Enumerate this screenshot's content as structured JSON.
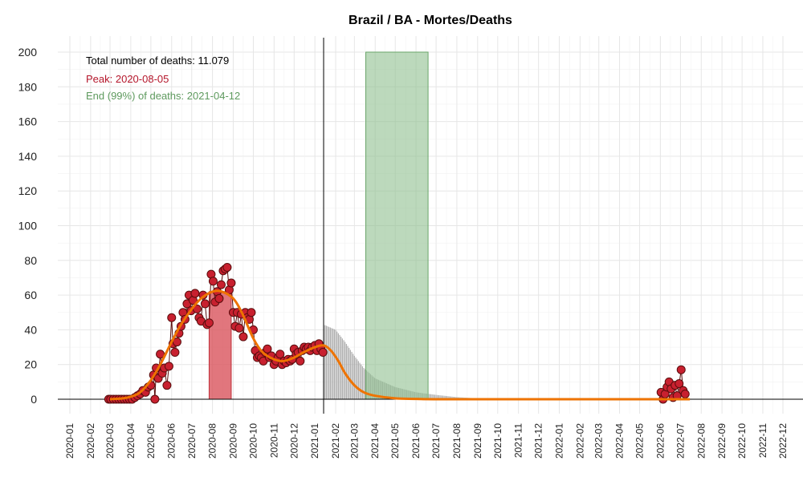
{
  "chart_data": {
    "type": "line",
    "title": "Brazil / BA - Mortes/Deaths",
    "xlabel": "",
    "ylabel": "",
    "ylim": [
      0,
      200
    ],
    "yticks": [
      0,
      20,
      40,
      60,
      80,
      100,
      120,
      140,
      160,
      180,
      200
    ],
    "xlim": [
      "2019-12-14",
      "2022-12-31"
    ],
    "grid": true,
    "legend": "none",
    "xticks": [
      "2020-01",
      "2020-02",
      "2020-03",
      "2020-04",
      "2020-05",
      "2020-06",
      "2020-07",
      "2020-08",
      "2020-09",
      "2020-10",
      "2020-11",
      "2020-12",
      "2021-01",
      "2021-02",
      "2021-03",
      "2021-04",
      "2021-05",
      "2021-06",
      "2021-07",
      "2021-08",
      "2021-09",
      "2021-10",
      "2021-11",
      "2021-12",
      "2022-01",
      "2022-02",
      "2022-03",
      "2022-04",
      "2022-05",
      "2022-06",
      "2022-07",
      "2022-08",
      "2022-09",
      "2022-10",
      "2022-11",
      "2022-12"
    ],
    "annotations": {
      "total": "Total number of deaths: 11.079",
      "peak": "Peak: 2020-08-05",
      "end": "End (99%) of deaths: 2021-04-12"
    },
    "colors": {
      "points": "#c8202f",
      "point_edge": "#5a0d0d",
      "fit": "#ee7300",
      "peak_band": "#d9545c",
      "end_band": "#8fc08f",
      "forecast": "#a8a8a8",
      "peak_text": "#b5162b",
      "end_text": "#5e9a5e"
    },
    "today": "2021-01-14",
    "peak_band": [
      "2020-07-27",
      "2020-08-29"
    ],
    "end_band": [
      "2021-03-18",
      "2021-06-19"
    ],
    "fit_curve": [
      [
        "2020-03-01",
        0
      ],
      [
        "2020-03-20",
        0.5
      ],
      [
        "2020-04-01",
        1.5
      ],
      [
        "2020-04-15",
        4
      ],
      [
        "2020-05-01",
        11
      ],
      [
        "2020-05-15",
        20
      ],
      [
        "2020-06-01",
        33
      ],
      [
        "2020-06-15",
        43
      ],
      [
        "2020-07-01",
        52
      ],
      [
        "2020-07-15",
        58
      ],
      [
        "2020-08-01",
        62
      ],
      [
        "2020-08-15",
        62
      ],
      [
        "2020-09-01",
        58
      ],
      [
        "2020-09-15",
        49
      ],
      [
        "2020-10-01",
        35
      ],
      [
        "2020-10-15",
        27
      ],
      [
        "2020-11-01",
        23
      ],
      [
        "2020-11-15",
        22
      ],
      [
        "2020-12-01",
        24
      ],
      [
        "2020-12-15",
        27
      ],
      [
        "2021-01-01",
        30
      ],
      [
        "2021-01-14",
        31
      ],
      [
        "2021-01-25",
        28
      ],
      [
        "2021-02-05",
        22
      ],
      [
        "2021-02-15",
        15
      ],
      [
        "2021-03-01",
        8
      ],
      [
        "2021-03-15",
        4
      ],
      [
        "2021-04-01",
        2
      ],
      [
        "2021-05-01",
        0.5
      ],
      [
        "2021-06-01",
        0.2
      ],
      [
        "2021-08-01",
        0
      ],
      [
        "2022-07-15",
        0
      ]
    ],
    "forecast_upper": [
      [
        "2021-01-14",
        43
      ],
      [
        "2021-02-01",
        40
      ],
      [
        "2021-02-15",
        33
      ],
      [
        "2021-03-01",
        25
      ],
      [
        "2021-03-15",
        18
      ],
      [
        "2021-04-01",
        12
      ],
      [
        "2021-05-01",
        7
      ],
      [
        "2021-06-01",
        4
      ],
      [
        "2021-07-01",
        2.5
      ],
      [
        "2021-08-01",
        1.2
      ],
      [
        "2021-09-01",
        0.5
      ],
      [
        "2021-10-01",
        0.2
      ],
      [
        "2021-11-01",
        0
      ]
    ],
    "observed": [
      [
        "2020-02-28",
        0
      ],
      [
        "2020-03-02",
        0
      ],
      [
        "2020-03-06",
        0
      ],
      [
        "2020-03-10",
        0
      ],
      [
        "2020-03-14",
        0
      ],
      [
        "2020-03-18",
        0
      ],
      [
        "2020-03-22",
        0
      ],
      [
        "2020-03-26",
        0
      ],
      [
        "2020-03-30",
        0
      ],
      [
        "2020-04-03",
        0
      ],
      [
        "2020-04-07",
        1
      ],
      [
        "2020-04-11",
        2
      ],
      [
        "2020-04-15",
        3
      ],
      [
        "2020-04-19",
        5
      ],
      [
        "2020-04-23",
        4
      ],
      [
        "2020-04-27",
        7
      ],
      [
        "2020-05-01",
        8
      ],
      [
        "2020-05-05",
        14
      ],
      [
        "2020-05-07",
        0
      ],
      [
        "2020-05-09",
        18
      ],
      [
        "2020-05-12",
        12
      ],
      [
        "2020-05-15",
        26
      ],
      [
        "2020-05-18",
        15
      ],
      [
        "2020-05-21",
        18
      ],
      [
        "2020-05-25",
        8
      ],
      [
        "2020-05-28",
        19
      ],
      [
        "2020-06-01",
        47
      ],
      [
        "2020-06-03",
        32
      ],
      [
        "2020-06-06",
        27
      ],
      [
        "2020-06-09",
        33
      ],
      [
        "2020-06-12",
        38
      ],
      [
        "2020-06-15",
        42
      ],
      [
        "2020-06-18",
        50
      ],
      [
        "2020-06-21",
        46
      ],
      [
        "2020-06-24",
        55
      ],
      [
        "2020-06-27",
        60
      ],
      [
        "2020-06-30",
        51
      ],
      [
        "2020-07-03",
        57
      ],
      [
        "2020-07-06",
        61
      ],
      [
        "2020-07-09",
        52
      ],
      [
        "2020-07-12",
        47
      ],
      [
        "2020-07-15",
        45
      ],
      [
        "2020-07-18",
        60
      ],
      [
        "2020-07-21",
        55
      ],
      [
        "2020-07-24",
        43
      ],
      [
        "2020-07-27",
        44
      ],
      [
        "2020-07-30",
        72
      ],
      [
        "2020-08-02",
        68
      ],
      [
        "2020-08-05",
        56
      ],
      [
        "2020-08-08",
        62
      ],
      [
        "2020-08-11",
        58
      ],
      [
        "2020-08-14",
        66
      ],
      [
        "2020-08-17",
        74
      ],
      [
        "2020-08-20",
        75
      ],
      [
        "2020-08-23",
        76
      ],
      [
        "2020-08-26",
        63
      ],
      [
        "2020-08-29",
        67
      ],
      [
        "2020-09-01",
        50
      ],
      [
        "2020-09-04",
        42
      ],
      [
        "2020-09-07",
        50
      ],
      [
        "2020-09-10",
        41
      ],
      [
        "2020-09-13",
        49
      ],
      [
        "2020-09-16",
        36
      ],
      [
        "2020-09-19",
        50
      ],
      [
        "2020-09-22",
        47
      ],
      [
        "2020-09-25",
        46
      ],
      [
        "2020-09-28",
        50
      ],
      [
        "2020-10-01",
        40
      ],
      [
        "2020-10-04",
        28
      ],
      [
        "2020-10-07",
        24
      ],
      [
        "2020-10-10",
        25
      ],
      [
        "2020-10-13",
        24
      ],
      [
        "2020-10-16",
        22
      ],
      [
        "2020-10-19",
        27
      ],
      [
        "2020-10-22",
        29
      ],
      [
        "2020-10-25",
        24
      ],
      [
        "2020-10-28",
        25
      ],
      [
        "2020-11-01",
        20
      ],
      [
        "2020-11-04",
        22
      ],
      [
        "2020-11-07",
        24
      ],
      [
        "2020-11-10",
        26
      ],
      [
        "2020-11-13",
        20
      ],
      [
        "2020-11-16",
        22
      ],
      [
        "2020-11-19",
        21
      ],
      [
        "2020-11-22",
        23
      ],
      [
        "2020-11-25",
        22
      ],
      [
        "2020-11-28",
        23
      ],
      [
        "2020-12-01",
        29
      ],
      [
        "2020-12-04",
        26
      ],
      [
        "2020-12-07",
        27
      ],
      [
        "2020-12-10",
        22
      ],
      [
        "2020-12-13",
        28
      ],
      [
        "2020-12-16",
        30
      ],
      [
        "2020-12-19",
        29
      ],
      [
        "2020-12-22",
        30
      ],
      [
        "2020-12-25",
        28
      ],
      [
        "2020-12-28",
        30
      ],
      [
        "2021-01-01",
        31
      ],
      [
        "2021-01-04",
        28
      ],
      [
        "2021-01-07",
        32
      ],
      [
        "2021-01-10",
        29
      ],
      [
        "2021-01-13",
        27
      ],
      [
        "2022-06-02",
        4
      ],
      [
        "2022-06-05",
        0
      ],
      [
        "2022-06-08",
        3
      ],
      [
        "2022-06-11",
        7
      ],
      [
        "2022-06-14",
        10
      ],
      [
        "2022-06-17",
        6
      ],
      [
        "2022-06-20",
        1
      ],
      [
        "2022-06-23",
        8
      ],
      [
        "2022-06-26",
        2
      ],
      [
        "2022-06-29",
        9
      ],
      [
        "2022-07-02",
        17
      ],
      [
        "2022-07-05",
        5
      ],
      [
        "2022-07-08",
        3
      ]
    ]
  }
}
